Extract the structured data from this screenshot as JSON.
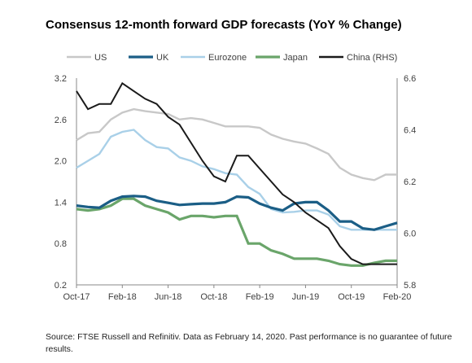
{
  "chart_data": {
    "type": "line",
    "title": "Consensus 12-month forward GDP forecasts (YoY % Change)",
    "x": [
      "Oct-17",
      "Nov-17",
      "Dec-17",
      "Jan-18",
      "Feb-18",
      "Mar-18",
      "Apr-18",
      "May-18",
      "Jun-18",
      "Jul-18",
      "Aug-18",
      "Sep-18",
      "Oct-18",
      "Nov-18",
      "Dec-18",
      "Jan-19",
      "Feb-19",
      "Mar-19",
      "Apr-19",
      "May-19",
      "Jun-19",
      "Jul-19",
      "Aug-19",
      "Sep-19",
      "Oct-19",
      "Nov-19",
      "Dec-19",
      "Jan-20",
      "Feb-20"
    ],
    "x_tick_labels": [
      "Oct-17",
      "Feb-18",
      "Jun-18",
      "Oct-18",
      "Feb-19",
      "Jun-19",
      "Oct-19",
      "Feb-20"
    ],
    "y_left": {
      "min": 0.2,
      "max": 3.2,
      "ticks": [
        "0.2",
        "0.8",
        "1.4",
        "2.0",
        "2.6",
        "3.2"
      ]
    },
    "y_right": {
      "min": 5.8,
      "max": 6.6,
      "ticks": [
        "5.8",
        "6.0",
        "6.2",
        "6.4",
        "6.6"
      ]
    },
    "legend_position": "top",
    "grid": false,
    "series": [
      {
        "name": "US",
        "axis": "left",
        "color": "#c8c8c8",
        "values": [
          2.3,
          2.4,
          2.42,
          2.6,
          2.7,
          2.75,
          2.72,
          2.7,
          2.68,
          2.6,
          2.62,
          2.6,
          2.55,
          2.5,
          2.5,
          2.5,
          2.48,
          2.38,
          2.32,
          2.28,
          2.25,
          2.18,
          2.1,
          1.9,
          1.8,
          1.75,
          1.72,
          1.8,
          1.8
        ]
      },
      {
        "name": "UK",
        "axis": "left",
        "color": "#1b5e86",
        "values": [
          1.35,
          1.33,
          1.32,
          1.42,
          1.48,
          1.49,
          1.48,
          1.42,
          1.39,
          1.36,
          1.37,
          1.38,
          1.38,
          1.4,
          1.48,
          1.47,
          1.38,
          1.32,
          1.28,
          1.38,
          1.4,
          1.4,
          1.28,
          1.12,
          1.12,
          1.02,
          1.0,
          1.05,
          1.1
        ]
      },
      {
        "name": "Eurozone",
        "axis": "left",
        "color": "#a9d0e8",
        "values": [
          1.9,
          2.0,
          2.1,
          2.35,
          2.42,
          2.45,
          2.3,
          2.2,
          2.18,
          2.05,
          2.0,
          1.92,
          1.88,
          1.82,
          1.8,
          1.62,
          1.52,
          1.3,
          1.25,
          1.26,
          1.28,
          1.28,
          1.22,
          1.05,
          1.0,
          1.0,
          1.0,
          1.0,
          1.0
        ]
      },
      {
        "name": "Japan",
        "axis": "left",
        "color": "#6aa56a",
        "values": [
          1.3,
          1.28,
          1.3,
          1.35,
          1.45,
          1.45,
          1.35,
          1.3,
          1.25,
          1.15,
          1.2,
          1.2,
          1.18,
          1.2,
          1.2,
          0.8,
          0.8,
          0.7,
          0.65,
          0.58,
          0.58,
          0.58,
          0.55,
          0.5,
          0.48,
          0.48,
          0.52,
          0.55,
          0.55
        ]
      },
      {
        "name": "China (RHS)",
        "axis": "right",
        "color": "#1a1a1a",
        "values": [
          6.55,
          6.48,
          6.5,
          6.5,
          6.58,
          6.55,
          6.52,
          6.5,
          6.45,
          6.42,
          6.35,
          6.28,
          6.22,
          6.2,
          6.3,
          6.3,
          6.25,
          6.2,
          6.15,
          6.12,
          6.08,
          6.05,
          6.02,
          5.95,
          5.9,
          5.88,
          5.88,
          5.88,
          5.88
        ]
      }
    ]
  },
  "source_text": "Source: FTSE Russell and Refinitiv. Data as February 14, 2020. Past performance is no guarantee of future results."
}
